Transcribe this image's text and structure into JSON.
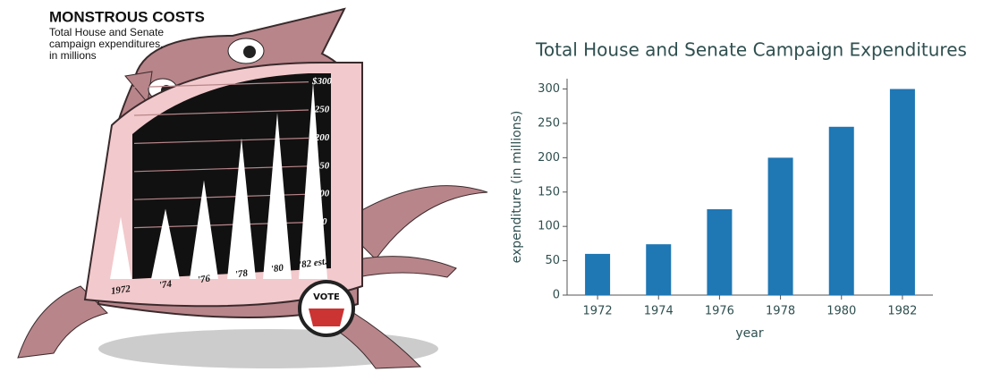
{
  "chart_data": [
    {
      "type": "pictograph",
      "title": "MONSTROUS COSTS",
      "subtitle": "Total House and Senate campaign expenditures, in millions",
      "categories": [
        "1972",
        "'74",
        "'76",
        "'78",
        "'80",
        "'82 est."
      ],
      "values": [
        60,
        74,
        125,
        200,
        245,
        300
      ],
      "ylim": [
        0,
        300
      ],
      "yticks": [
        {
          "value": 300,
          "label": "$300"
        },
        250,
        200,
        150,
        100,
        50
      ],
      "grid": true,
      "color": "#ffffff",
      "annotation": "VOTE"
    },
    {
      "type": "bar",
      "title": "Total House and Senate Campaign Expenditures",
      "x_label": "year",
      "y_label": "expenditure (in millions)",
      "categories": [
        "1972",
        "1974",
        "1976",
        "1978",
        "1980",
        "1982"
      ],
      "values": [
        60,
        74,
        125,
        200,
        245,
        300
      ],
      "ylim": [
        0,
        315
      ],
      "yticks": [
        0,
        50,
        100,
        150,
        200,
        250,
        300
      ],
      "color": "#1f77b4",
      "grid": false
    }
  ]
}
